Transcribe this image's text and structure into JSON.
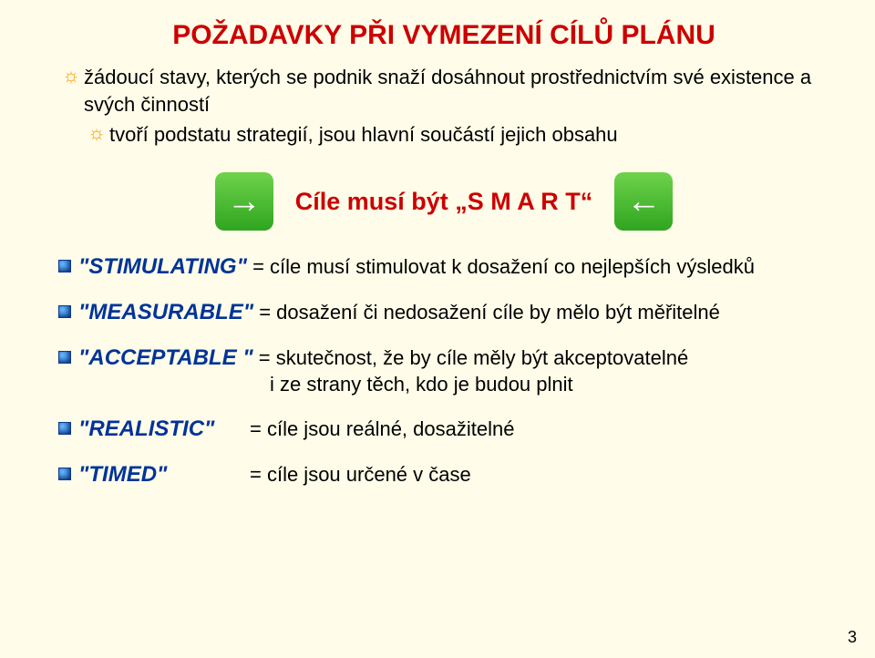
{
  "colors": {
    "title": "#cc0000",
    "sun": "#ff9900",
    "black": "#000000",
    "smart": "#cc0000",
    "term": "#003399",
    "arrow_bg_top": "#6fd24c",
    "arrow_bg_bottom": "#2fa51f",
    "arrow_glyph": "#ffffff",
    "bullet_border": "#0a3a8a",
    "page_bg": "#fffde9"
  },
  "title": "POŽADAVKY PŘI VYMEZENÍ CÍLŮ PLÁNU",
  "intro": {
    "line1": "žádoucí stavy, kterých se podnik snaží dosáhnout prostřednictvím své existence a svých činností",
    "line2": "tvoří podstatu strategií, jsou hlavní součástí jejich obsahu"
  },
  "smart": {
    "prefix": "Cíle  musí být   ",
    "quoted": "„S M A R T“",
    "arrow_right": "→",
    "arrow_left": "←"
  },
  "defs": {
    "stimulating": {
      "term": "\"STIMULATING\"",
      "rest": " =  cíle musí stimulovat k dosažení co nejlepších  výsledků"
    },
    "measurable": {
      "term": "\"MEASURABLE\"",
      "rest": " = dosažení či nedosažení cíle by mělo být  měřitelné"
    },
    "acceptable": {
      "term": "\"ACCEPTABLE \"",
      "rest": " = skutečnost, že by cíle měly být akceptovatelné",
      "sub": "i ze strany těch, kdo je budou plnit"
    },
    "realistic": {
      "term": "\"REALISTIC\"",
      "rest": "= cíle jsou  reálné, dosažitelné"
    },
    "timed": {
      "term": "\"TIMED\"",
      "rest": "= cíle jsou určené v čase"
    }
  },
  "page_number": "3",
  "sun_glyph": "☼"
}
